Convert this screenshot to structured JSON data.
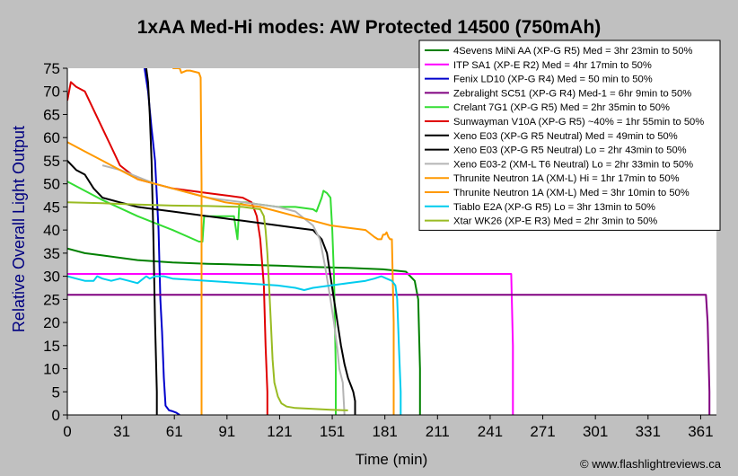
{
  "chart_data": {
    "type": "line",
    "title": "1xAA Med-Hi modes: AW Protected 14500 (750mAh)",
    "xlabel": "Time (min)",
    "ylabel": "Relative Overall Light Output",
    "xlim": [
      0,
      370
    ],
    "ylim": [
      0,
      75
    ],
    "xticks": [
      0,
      31,
      61,
      91,
      121,
      151,
      181,
      211,
      241,
      271,
      301,
      331,
      361
    ],
    "yticks": [
      0,
      5,
      10,
      15,
      20,
      25,
      30,
      35,
      40,
      45,
      50,
      55,
      60,
      65,
      70,
      75
    ],
    "grid": false,
    "legend_position": "top-right",
    "credit": "© www.flashlightreviews.ca",
    "series": [
      {
        "name": "4Sevens MiNi AA (XP-G R5) Med = 3hr 23min to 50%",
        "color": "#008000",
        "x": [
          0,
          10,
          20,
          40,
          60,
          80,
          100,
          120,
          140,
          160,
          180,
          193,
          198,
          200,
          201,
          201
        ],
        "y": [
          36,
          35,
          34.5,
          33.5,
          33,
          32.7,
          32.5,
          32.3,
          32,
          31.8,
          31.5,
          31,
          29,
          25,
          10,
          0
        ]
      },
      {
        "name": "ITP SA1 (XP-E R2) Med = 4hr 17min to 50%",
        "color": "#ff00ff",
        "x": [
          0,
          100,
          200,
          253,
          254,
          254
        ],
        "y": [
          30.5,
          30.5,
          30.5,
          30.5,
          15,
          0
        ]
      },
      {
        "name": "Fenix LD10 (XP-G R4) Med = 50 min to 50%",
        "color": "#0000cc",
        "x": [
          44,
          46,
          48,
          50,
          52,
          53,
          54,
          55,
          56,
          58,
          60,
          62,
          64
        ],
        "y": [
          75,
          70,
          62,
          55,
          40,
          25,
          18,
          8,
          2,
          1,
          0.8,
          0.5,
          0
        ]
      },
      {
        "name": "Zebralight SC51 (XP-G R4) Med-1 = 6hr 9min to 50%",
        "color": "#800080",
        "x": [
          0,
          100,
          200,
          300,
          364,
          365,
          366,
          366
        ],
        "y": [
          26,
          26,
          26,
          26,
          26,
          20,
          5,
          0
        ]
      },
      {
        "name": "Crelant 7G1 (XP-G R5) Med = 2hr 35min to 50%",
        "color": "#33dd33",
        "x": [
          0,
          20,
          40,
          60,
          75,
          77,
          78,
          80,
          85,
          90,
          95,
          97,
          98,
          100,
          101,
          102,
          110,
          120,
          130,
          140,
          142,
          145,
          146,
          148,
          150,
          151,
          152,
          153,
          153
        ],
        "y": [
          50.5,
          46.5,
          43,
          40,
          37.5,
          37.5,
          43,
          43,
          43,
          43,
          43,
          38,
          45.5,
          46,
          46,
          46,
          45.5,
          45,
          45,
          44.5,
          44,
          47,
          48.5,
          48,
          47,
          40,
          30,
          10,
          0
        ]
      },
      {
        "name": "Sunwayman V10A (XP-G R5) ~40% = 1hr 55min to 50%",
        "color": "#e00000",
        "x": [
          0,
          2,
          5,
          10,
          15,
          20,
          25,
          30,
          40,
          50,
          60,
          70,
          80,
          90,
          100,
          105,
          108,
          110,
          112,
          113,
          114,
          114
        ],
        "y": [
          68,
          72,
          71,
          70,
          66,
          62,
          58,
          54,
          51,
          50,
          49,
          48.5,
          48,
          47.5,
          47,
          46,
          43,
          38,
          28,
          15,
          5,
          0
        ]
      },
      {
        "name": "Xeno E03 (XP-G R5 Neutral) Med = 49min to 50%",
        "color": "#000000",
        "x": [
          45,
          46,
          47,
          48,
          49,
          50,
          51,
          51
        ],
        "y": [
          75,
          72,
          65,
          55,
          40,
          20,
          5,
          0
        ]
      },
      {
        "name": "Xeno E03 (XP-G R5 Neutral) Lo = 2hr 43min to 50%",
        "color": "#000000",
        "x": [
          0,
          5,
          10,
          15,
          20,
          30,
          40,
          50,
          60,
          70,
          80,
          90,
          100,
          110,
          120,
          130,
          140,
          145,
          148,
          150,
          152,
          154,
          156,
          158,
          160,
          162,
          163,
          164,
          164
        ],
        "y": [
          55,
          53,
          52,
          49,
          47,
          46,
          45,
          44.5,
          44,
          43.5,
          43,
          42.5,
          42,
          41.5,
          41,
          40.5,
          40,
          38,
          35,
          30,
          25,
          20,
          15,
          11,
          8,
          6,
          5,
          3,
          0
        ]
      },
      {
        "name": "Xeno E03-2 (XM-L T6 Neutral) Lo = 2hr 33min to 50%",
        "color": "#b4b4b4",
        "x": [
          20,
          30,
          40,
          50,
          60,
          70,
          80,
          90,
          100,
          110,
          120,
          130,
          140,
          144,
          147,
          150,
          152,
          154,
          155,
          157,
          158
        ],
        "y": [
          54,
          53,
          51.5,
          50,
          49,
          48,
          47,
          46.5,
          46,
          45.5,
          45,
          44,
          41,
          38,
          32,
          25,
          20,
          14,
          10,
          7,
          0
        ]
      },
      {
        "name": "Thrunite Neutron 1A (XM-L) Hi = 1hr 17min to 50%",
        "color": "#ff9900",
        "x": [
          60,
          64,
          65,
          68,
          70,
          75,
          76,
          76.5,
          76.5
        ],
        "y": [
          75,
          75,
          74,
          74.5,
          74.5,
          74,
          73,
          50,
          0
        ]
      },
      {
        "name": "Thrunite Neutron 1A (XM-L) Med = 3hr 10min to 50%",
        "color": "#ff9900",
        "x": [
          0,
          10,
          20,
          30,
          40,
          50,
          60,
          70,
          80,
          90,
          100,
          110,
          120,
          130,
          140,
          150,
          160,
          170,
          175,
          177,
          179,
          180,
          181,
          182,
          183,
          184,
          185,
          186,
          186
        ],
        "y": [
          59,
          57,
          55,
          53,
          51,
          50,
          49,
          48,
          47,
          46,
          45.5,
          45,
          44,
          43,
          42,
          41,
          40.5,
          40,
          38.5,
          38,
          38,
          39,
          39,
          39.5,
          38.5,
          38,
          38,
          20,
          0
        ]
      },
      {
        "name": "Tiablo E2A (XP-G R5) Lo = 3hr 13min to 50%",
        "color": "#00ccee",
        "x": [
          0,
          5,
          10,
          15,
          17,
          20,
          25,
          30,
          35,
          40,
          45,
          47,
          50,
          55,
          60,
          80,
          100,
          120,
          130,
          135,
          140,
          150,
          160,
          170,
          175,
          179,
          182,
          185,
          187,
          188,
          189,
          190,
          190
        ],
        "y": [
          30,
          29.5,
          29,
          29,
          30,
          29.5,
          29,
          29.5,
          29,
          28.5,
          30,
          29.5,
          30,
          30,
          29.5,
          29,
          28.5,
          28,
          27.5,
          27,
          27.5,
          28,
          28.5,
          29,
          29.5,
          30,
          29.5,
          29,
          28,
          25,
          15,
          5,
          0
        ]
      },
      {
        "name": "Xtar WK26 (XP-E R3) Med = 2hr 3min to 50%",
        "color": "#99bb22",
        "x": [
          0,
          20,
          40,
          60,
          80,
          100,
          110,
          112,
          113,
          114,
          115,
          116,
          117,
          118,
          120,
          122,
          125,
          130,
          140,
          150,
          160
        ],
        "y": [
          46,
          45.8,
          45.5,
          45.3,
          45.2,
          45,
          44.5,
          43,
          40,
          35,
          28,
          20,
          12,
          7,
          4,
          2.5,
          1.8,
          1.5,
          1.3,
          1.1,
          1
        ]
      }
    ]
  }
}
